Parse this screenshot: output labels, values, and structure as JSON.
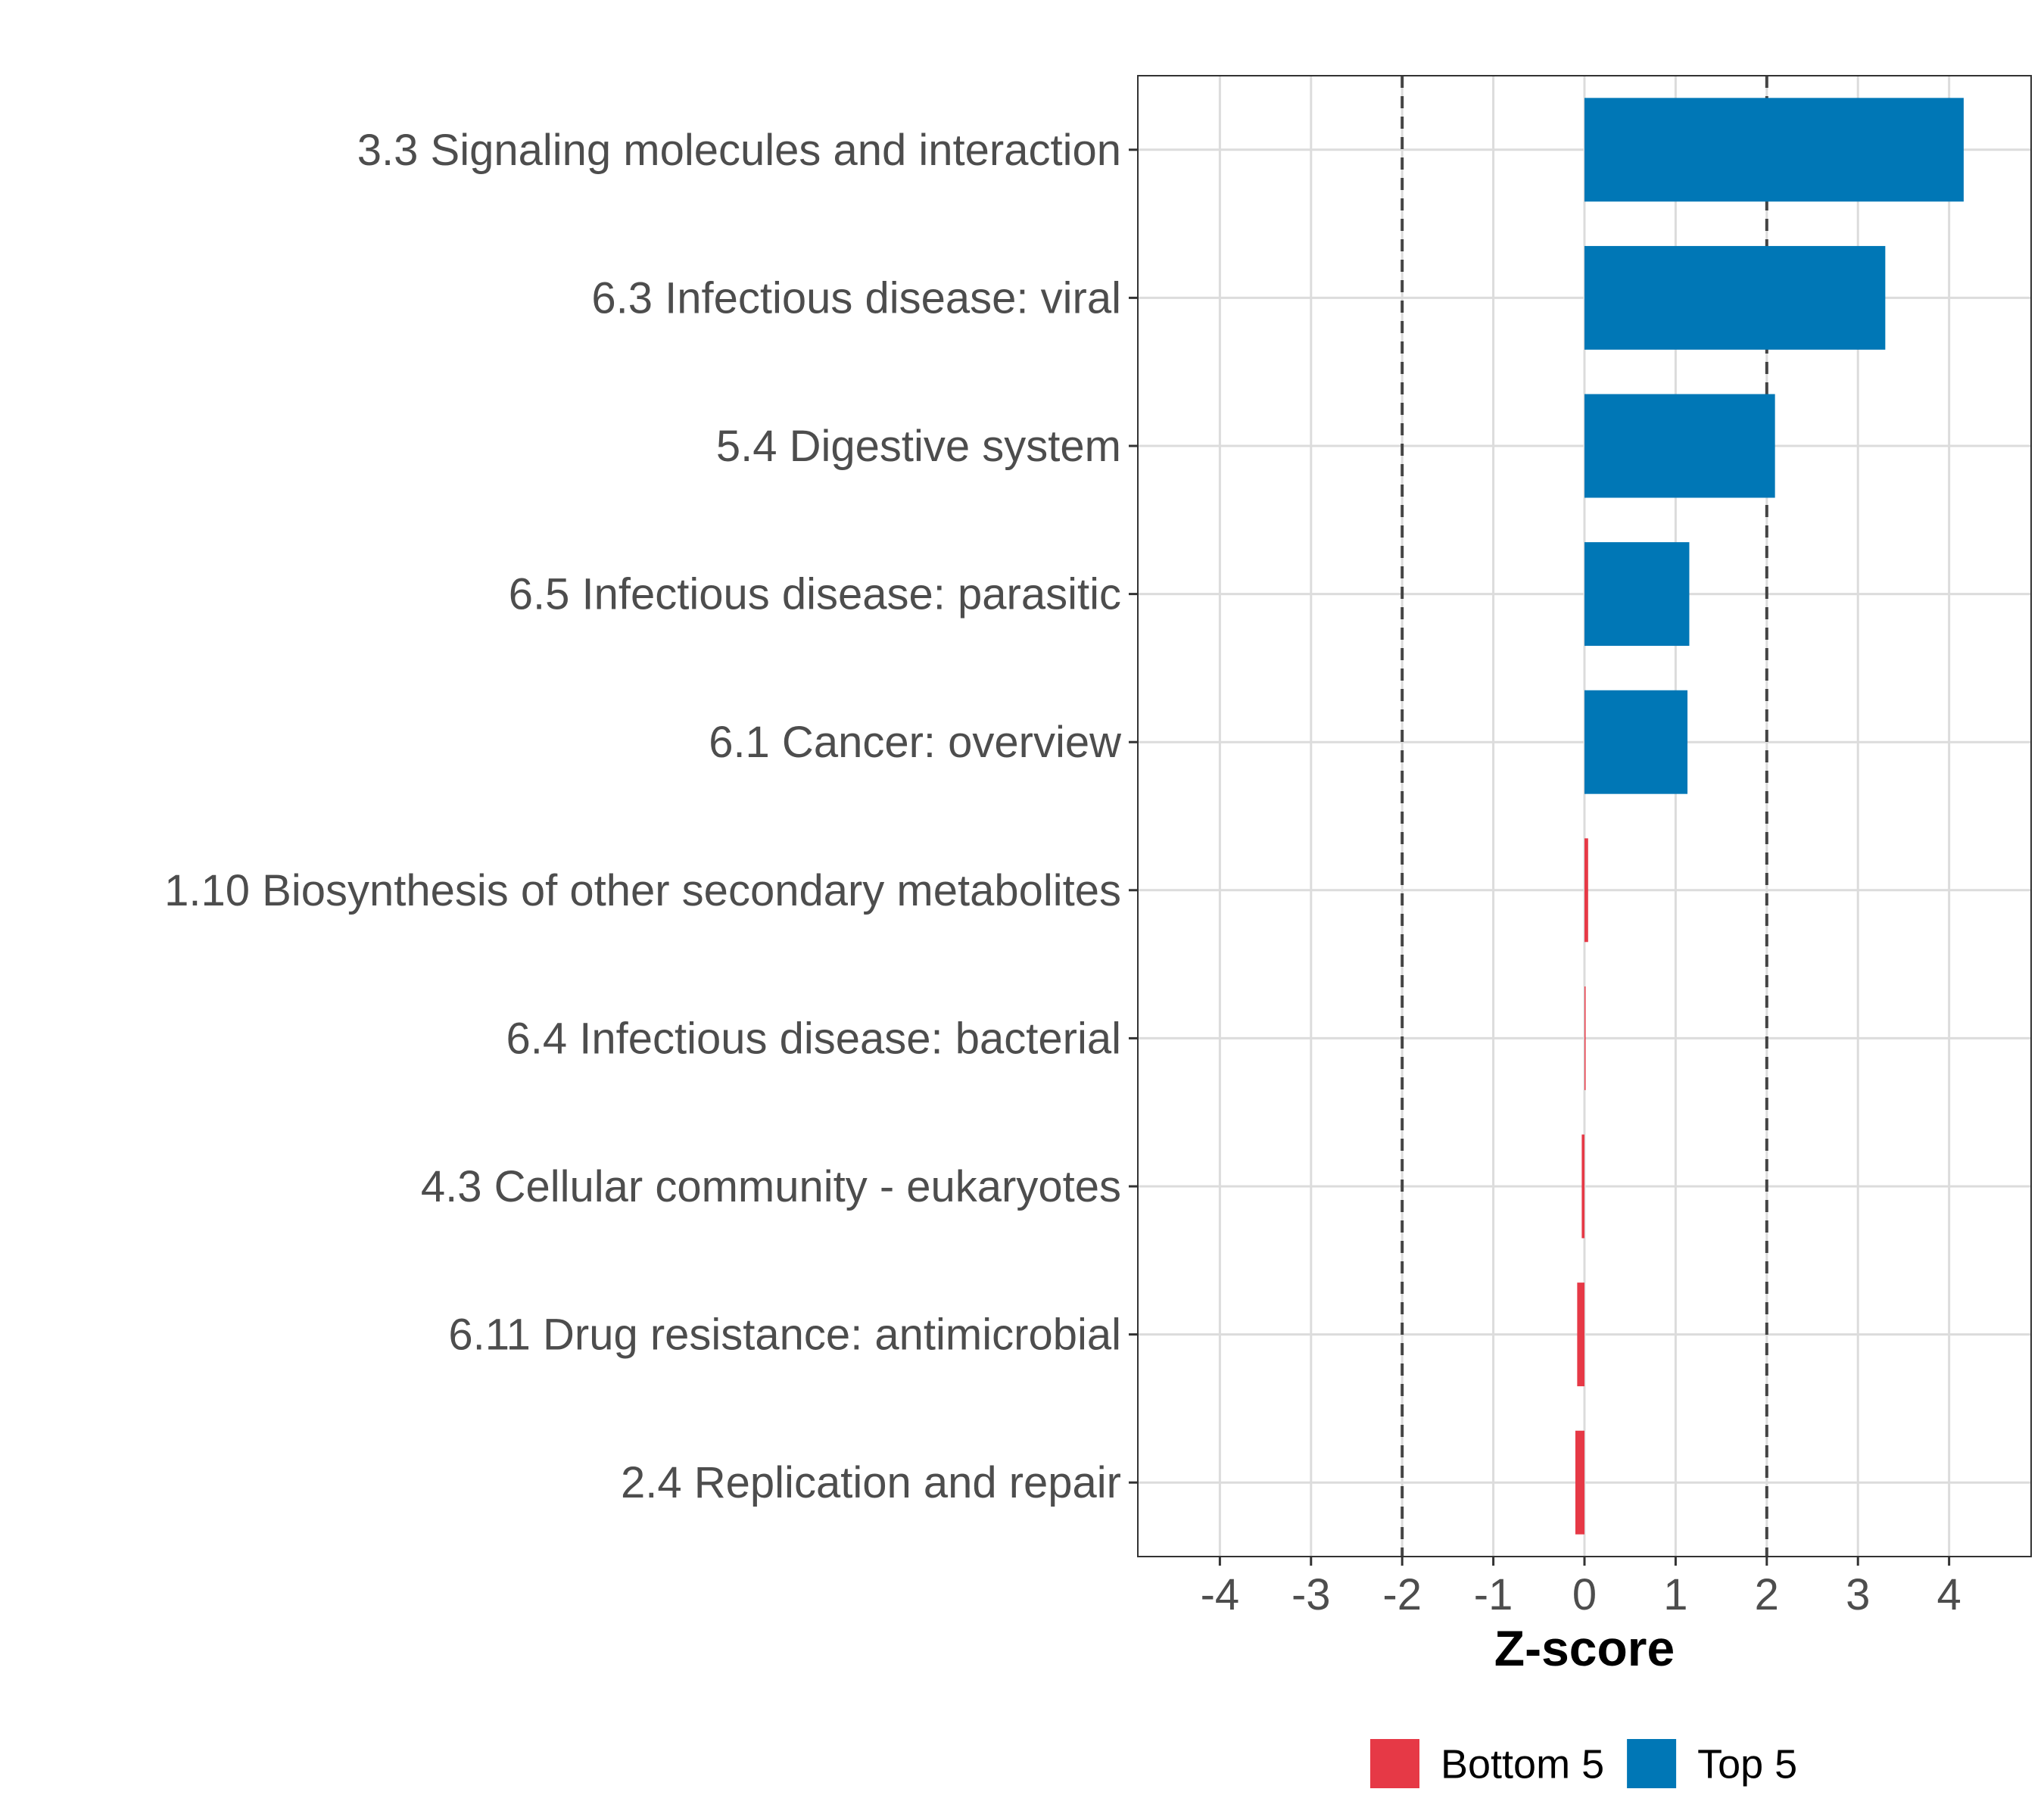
{
  "chart_data": {
    "type": "bar",
    "orientation": "horizontal",
    "title": "",
    "xlabel": "Z-score",
    "ylabel": "",
    "xlim": [
      -4.9,
      4.9
    ],
    "xticks": [
      -4,
      -3,
      -2,
      -1,
      0,
      1,
      2,
      3,
      4
    ],
    "xtick_labels": [
      "-4",
      "-3",
      "-2",
      "-1",
      "0",
      "1",
      "2",
      "3",
      "4"
    ],
    "reference_lines": [
      -2,
      2
    ],
    "grid": true,
    "categories": [
      "3.3 Signaling molecules and interaction",
      "6.3 Infectious disease: viral",
      "5.4 Digestive system",
      "6.5 Infectious disease: parasitic",
      "6.1 Cancer: overview",
      "1.10 Biosynthesis of other secondary metabolites",
      "6.4 Infectious disease: bacterial",
      "4.3 Cellular community - eukaryotes",
      "6.11 Drug resistance: antimicrobial",
      "2.4 Replication and repair"
    ],
    "values": [
      4.16,
      3.3,
      2.09,
      1.15,
      1.13,
      0.04,
      0.01,
      -0.03,
      -0.08,
      -0.1
    ],
    "groups": [
      "Top 5",
      "Top 5",
      "Top 5",
      "Top 5",
      "Top 5",
      "Bottom 5",
      "Bottom 5",
      "Bottom 5",
      "Bottom 5",
      "Bottom 5"
    ],
    "legend": [
      {
        "label": "Bottom 5",
        "color": "#E63946"
      },
      {
        "label": "Top 5",
        "color": "#0077B6"
      }
    ],
    "legend_position": "bottom"
  }
}
